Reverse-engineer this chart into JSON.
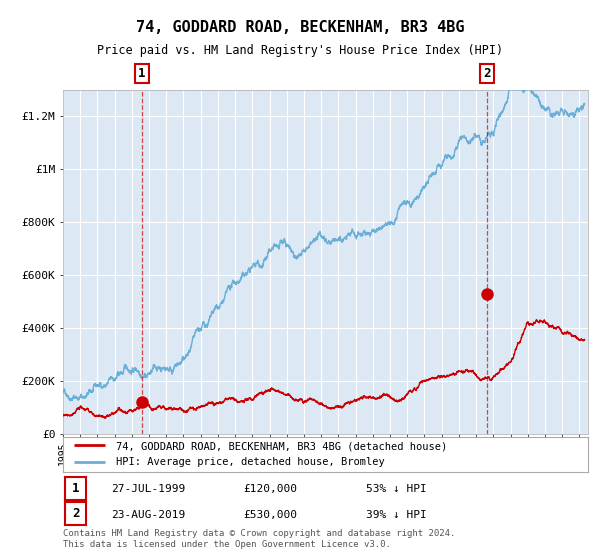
{
  "title": "74, GODDARD ROAD, BECKENHAM, BR3 4BG",
  "subtitle": "Price paid vs. HM Land Registry's House Price Index (HPI)",
  "legend_line1": "74, GODDARD ROAD, BECKENHAM, BR3 4BG (detached house)",
  "legend_line2": "HPI: Average price, detached house, Bromley",
  "annotation1": {
    "label": "1",
    "date": "27-JUL-1999",
    "price": "£120,000",
    "hpi": "53% ↓ HPI",
    "x_year": 1999.57,
    "y_price": 120000
  },
  "annotation2": {
    "label": "2",
    "date": "23-AUG-2019",
    "price": "£530,000",
    "hpi": "39% ↓ HPI",
    "x_year": 2019.64,
    "y_price": 530000
  },
  "footer": "Contains HM Land Registry data © Crown copyright and database right 2024.\nThis data is licensed under the Open Government Licence v3.0.",
  "hpi_color": "#6baed6",
  "price_color": "#cc0000",
  "background_color": "#dce9f5",
  "plot_bg": "#ffffff",
  "ylim": [
    0,
    1300000
  ],
  "xlim_start": 1995.0,
  "xlim_end": 2025.5
}
